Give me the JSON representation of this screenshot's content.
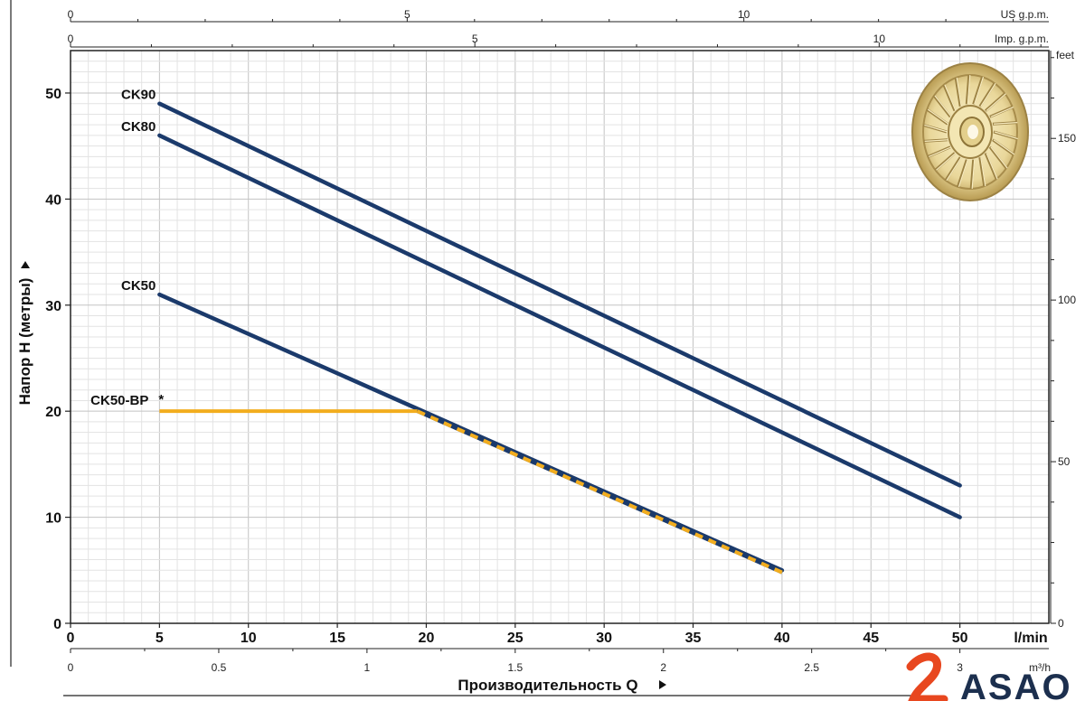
{
  "chart_data": {
    "type": "line",
    "x_unit": "l/min",
    "x_ticks": [
      0,
      5,
      10,
      15,
      20,
      25,
      30,
      35,
      40,
      45,
      50
    ],
    "xlim": [
      0,
      55
    ],
    "ylim": [
      0,
      54
    ],
    "y_ticks": [
      0,
      10,
      20,
      30,
      40,
      50
    ],
    "ylabel": "Напор H (метры)",
    "xlabel": "Производительность Q",
    "grid": true,
    "secondary_axes": {
      "us_gpm": {
        "label": "US g.p.m.",
        "ticks": [
          0,
          5,
          10
        ],
        "factor": 0.264172
      },
      "imp_gpm": {
        "label": "Imp. g.p.m.",
        "ticks": [
          0,
          5,
          10
        ],
        "factor": 0.219969
      },
      "feet": {
        "label": "feet",
        "ticks": [
          0,
          50,
          100,
          150
        ],
        "factor": 3.28084
      },
      "m3h": {
        "label": "m³/h",
        "ticks": [
          "0",
          "0.5",
          "1",
          "1.5",
          "2",
          "2.5",
          "3"
        ],
        "factor": 0.06
      }
    },
    "series": [
      {
        "name": "CK90",
        "color": "#1b3a6b",
        "x": [
          5,
          50
        ],
        "y": [
          49,
          13
        ],
        "style": "solid"
      },
      {
        "name": "CK80",
        "color": "#1b3a6b",
        "x": [
          5,
          50
        ],
        "y": [
          46,
          10
        ],
        "style": "solid"
      },
      {
        "name": "CK50",
        "color": "#1b3a6b",
        "x": [
          5,
          40
        ],
        "y": [
          31,
          5
        ],
        "style": "solid"
      },
      {
        "name": "CK50-BP",
        "marker": "*",
        "color": "#f2ad1e",
        "x": [
          5,
          19.5,
          40
        ],
        "y": [
          20,
          20,
          4.8
        ],
        "style": "solid-then-dashed"
      }
    ]
  },
  "logo": {
    "text": "ASAO",
    "color": "#1c2f4e",
    "accent": "#e8471f"
  },
  "impeller_icon": "impeller-image"
}
